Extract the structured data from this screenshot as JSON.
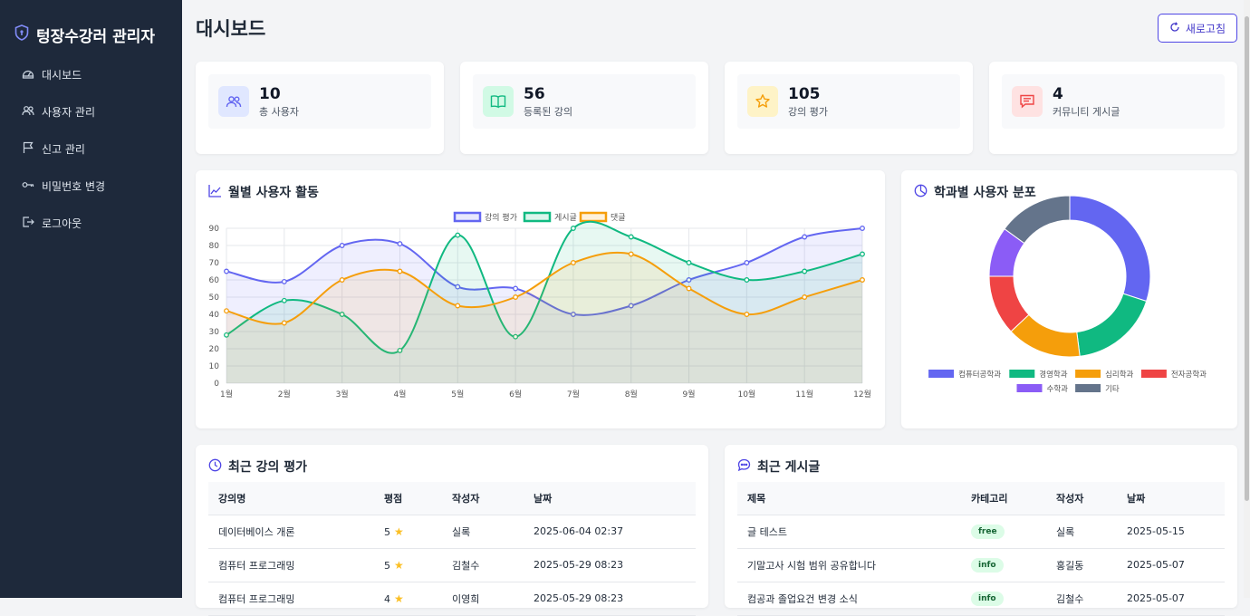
{
  "brand": {
    "title": "텅장수강러 관리자",
    "icon": "shield-icon"
  },
  "nav": [
    {
      "label": "대시보드",
      "icon": "dashboard-icon"
    },
    {
      "label": "사용자 관리",
      "icon": "users-icon"
    },
    {
      "label": "신고 관리",
      "icon": "flag-icon"
    },
    {
      "label": "비밀번호 변경",
      "icon": "key-icon"
    },
    {
      "label": "로그아웃",
      "icon": "logout-icon"
    }
  ],
  "header": {
    "title": "대시보드",
    "refresh_label": "새로고침"
  },
  "stats": [
    {
      "value": "10",
      "label": "총 사용자",
      "icon": "users-icon",
      "color": "#6366f1",
      "bg": "#e0e7ff"
    },
    {
      "value": "56",
      "label": "등록된 강의",
      "icon": "book-icon",
      "color": "#10b981",
      "bg": "#d1fae5"
    },
    {
      "value": "105",
      "label": "강의 평가",
      "icon": "star-icon",
      "color": "#f59e0b",
      "bg": "#fef3c7"
    },
    {
      "value": "4",
      "label": "커뮤니티 게시글",
      "icon": "message-icon",
      "color": "#ef4444",
      "bg": "#fee2e2"
    }
  ],
  "activity": {
    "title": "월별 사용자 활동"
  },
  "distribution": {
    "title": "학과별 사용자 분포"
  },
  "chart_data": [
    {
      "type": "line",
      "title": "월별 사용자 활동",
      "categories": [
        "1월",
        "2월",
        "3월",
        "4월",
        "5월",
        "6월",
        "7월",
        "8월",
        "9월",
        "10월",
        "11월",
        "12월"
      ],
      "y_ticks": [
        "0",
        "10",
        "20",
        "30",
        "40",
        "50",
        "60",
        "70",
        "80",
        "90"
      ],
      "ylim": [
        0,
        90
      ],
      "legend": "top",
      "grid": true,
      "series": [
        {
          "name": "강의 평가",
          "color": "#6366f1",
          "values": [
            65,
            59,
            80,
            81,
            56,
            55,
            40,
            45,
            60,
            70,
            85,
            90
          ]
        },
        {
          "name": "게시글",
          "color": "#10b981",
          "values": [
            28,
            48,
            40,
            19,
            86,
            27,
            90,
            85,
            70,
            60,
            65,
            75
          ]
        },
        {
          "name": "댓글",
          "color": "#f59e0b",
          "values": [
            42,
            35,
            60,
            65,
            45,
            50,
            70,
            75,
            55,
            40,
            50,
            60
          ]
        }
      ]
    },
    {
      "type": "pie",
      "title": "학과별 사용자 분포",
      "legend": "bottom",
      "labels": [
        "컴퓨터공학과",
        "경영학과",
        "심리학과",
        "전자공학과",
        "수학과",
        "기타"
      ],
      "values": [
        30,
        18,
        15,
        12,
        10,
        15
      ],
      "colors": [
        "#6366f1",
        "#10b981",
        "#f59e0b",
        "#ef4444",
        "#8b5cf6",
        "#64748b"
      ]
    }
  ],
  "reviews": {
    "title": "최근 강의 평가",
    "columns": [
      "강의명",
      "평점",
      "작성자",
      "날짜"
    ],
    "rows": [
      {
        "course": "데이터베이스 개론",
        "rating": "5",
        "author": "실록",
        "date": "2025-06-04 02:37"
      },
      {
        "course": "컴퓨터 프로그래밍",
        "rating": "5",
        "author": "김철수",
        "date": "2025-05-29 08:23"
      },
      {
        "course": "컴퓨터 프로그래밍",
        "rating": "4",
        "author": "이영희",
        "date": "2025-05-29 08:23"
      }
    ]
  },
  "posts": {
    "title": "최근 게시글",
    "columns": [
      "제목",
      "카테고리",
      "작성자",
      "날짜"
    ],
    "rows": [
      {
        "title": "글 테스트",
        "category": "free",
        "author": "실록",
        "date": "2025-05-15"
      },
      {
        "title": "기말고사 시험 범위 공유합니다",
        "category": "info",
        "author": "홍길동",
        "date": "2025-05-07"
      },
      {
        "title": "컴공과 졸업요건 변경 소식",
        "category": "info",
        "author": "김철수",
        "date": "2025-05-07"
      }
    ]
  }
}
